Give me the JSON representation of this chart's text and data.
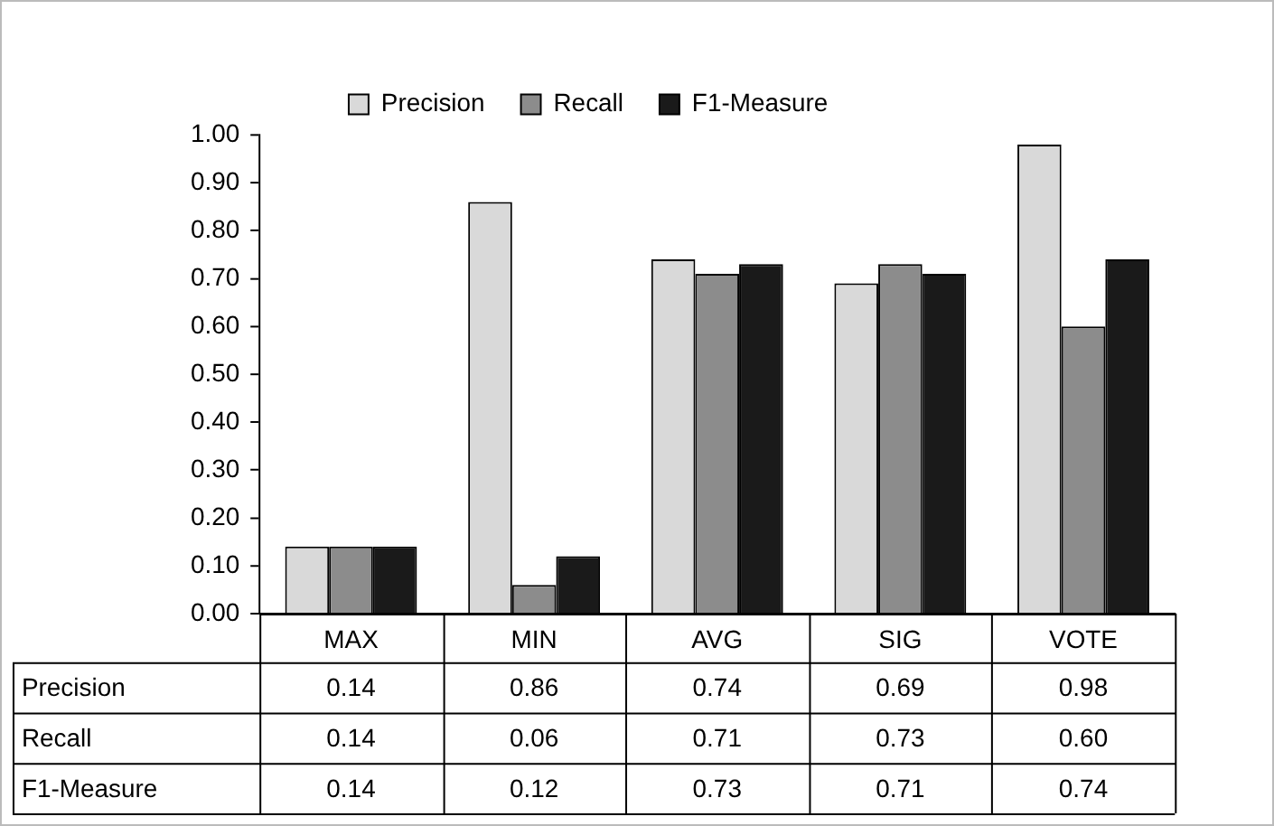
{
  "chart_data": {
    "type": "bar",
    "categories": [
      "MAX",
      "MIN",
      "AVG",
      "SIG",
      "VOTE"
    ],
    "series": [
      {
        "name": "Precision",
        "color": "#d9d9d9",
        "values": [
          0.14,
          0.86,
          0.74,
          0.69,
          0.98
        ],
        "value_labels": [
          "0.14",
          "0.86",
          "0.74",
          "0.69",
          "0.98"
        ]
      },
      {
        "name": "Recall",
        "color": "#8c8c8c",
        "values": [
          0.14,
          0.06,
          0.71,
          0.73,
          0.6
        ],
        "value_labels": [
          "0.14",
          "0.06",
          "0.71",
          "0.73",
          "0.60"
        ]
      },
      {
        "name": "F1-Measure",
        "color": "#1a1a1a",
        "values": [
          0.14,
          0.12,
          0.73,
          0.71,
          0.74
        ],
        "value_labels": [
          "0.14",
          "0.12",
          "0.73",
          "0.71",
          "0.74"
        ]
      }
    ],
    "ylim": [
      0,
      1
    ],
    "yticks": [
      {
        "value": 0,
        "label": "0.00"
      },
      {
        "value": 0.1,
        "label": "0.10"
      },
      {
        "value": 0.2,
        "label": "0.20"
      },
      {
        "value": 0.3,
        "label": "0.30"
      },
      {
        "value": 0.4,
        "label": "0.40"
      },
      {
        "value": 0.5,
        "label": "0.50"
      },
      {
        "value": 0.6,
        "label": "0.60"
      },
      {
        "value": 0.7,
        "label": "0.70"
      },
      {
        "value": 0.8,
        "label": "0.80"
      },
      {
        "value": 0.9,
        "label": "0.90"
      },
      {
        "value": 1,
        "label": "1.00"
      }
    ],
    "grid": false,
    "legend": "top"
  }
}
